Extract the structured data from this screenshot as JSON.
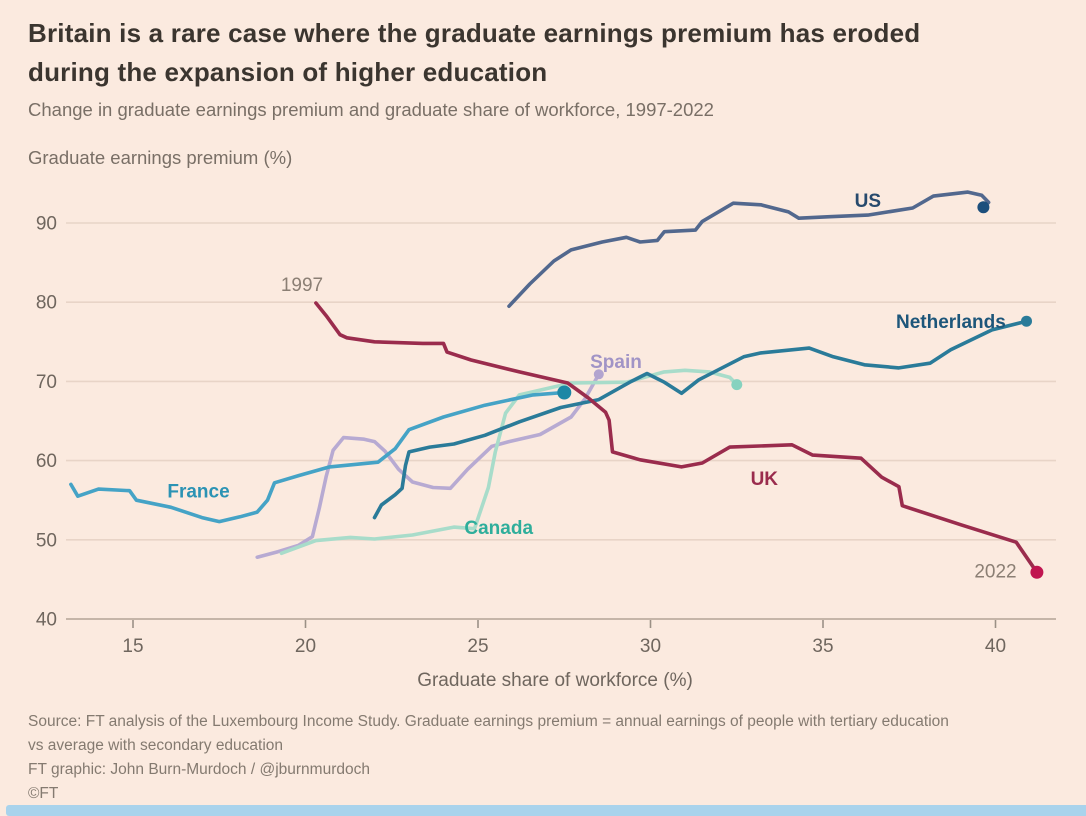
{
  "chart_data": {
    "type": "line",
    "title": "Britain is a rare case where the graduate earnings premium has eroded during the expansion of higher education",
    "subtitle": "Change in graduate earnings premium and graduate share of workforce, 1997-2022",
    "xlabel": "Graduate share of workforce (%)",
    "ylabel": "Graduate earnings premium (%)",
    "source": "Source: FT analysis of the Luxembourg Income Study. Graduate earnings premium = annual earnings of people with tertiary education vs average with secondary education",
    "credit": "FT graphic: John Burn-Murdoch / @jburnmurdoch",
    "copyright": "©FT",
    "xlim": [
      13.0,
      41.8
    ],
    "ylim": [
      40,
      95.5
    ],
    "x_ticks": [
      15,
      20,
      25,
      30,
      35,
      40
    ],
    "y_ticks": [
      90,
      80,
      70,
      60,
      50,
      40
    ],
    "grid": "horizontal",
    "period": "1997-2022",
    "series": [
      {
        "id": "spain",
        "name": "Spain",
        "color": "#b7aad2",
        "dot_color": "#b2a4cf",
        "dot_r": 5,
        "end_dot": true,
        "points": [
          [
            18.6,
            47.8
          ],
          [
            19.2,
            48.5
          ],
          [
            19.8,
            49.3
          ],
          [
            20.2,
            50.4
          ],
          [
            20.4,
            54.0
          ],
          [
            20.6,
            58.0
          ],
          [
            20.8,
            61.3
          ],
          [
            21.1,
            62.9
          ],
          [
            21.7,
            62.7
          ],
          [
            22.0,
            62.4
          ],
          [
            22.3,
            61.2
          ],
          [
            22.7,
            58.9
          ],
          [
            23.1,
            57.3
          ],
          [
            23.7,
            56.6
          ],
          [
            24.2,
            56.5
          ],
          [
            24.7,
            58.9
          ],
          [
            25.4,
            61.8
          ],
          [
            25.9,
            62.4
          ],
          [
            26.8,
            63.3
          ],
          [
            27.7,
            65.5
          ],
          [
            28.1,
            67.8
          ],
          [
            28.5,
            70.9
          ]
        ]
      },
      {
        "id": "canada",
        "name": "Canada",
        "color": "#a8dcca",
        "dot_color": "#86d2bf",
        "dot_r": 5.5,
        "end_dot": true,
        "points": [
          [
            19.3,
            48.3
          ],
          [
            20.3,
            49.9
          ],
          [
            21.3,
            50.3
          ],
          [
            22.0,
            50.1
          ],
          [
            23.1,
            50.6
          ],
          [
            24.3,
            51.6
          ],
          [
            24.9,
            51.4
          ],
          [
            25.3,
            56.6
          ],
          [
            25.5,
            61.1
          ],
          [
            25.8,
            66.0
          ],
          [
            26.2,
            68.3
          ],
          [
            26.8,
            68.9
          ],
          [
            27.7,
            69.8
          ],
          [
            29.3,
            69.9
          ],
          [
            30.4,
            71.2
          ],
          [
            31.0,
            71.4
          ],
          [
            31.7,
            71.2
          ],
          [
            32.3,
            70.5
          ],
          [
            32.5,
            69.6
          ]
        ]
      },
      {
        "id": "france",
        "name": "France",
        "color": "#45a3c6",
        "dot_color": "#1c87a5",
        "dot_r": 7,
        "end_dot": true,
        "points": [
          [
            13.2,
            57.0
          ],
          [
            13.4,
            55.5
          ],
          [
            14.0,
            56.4
          ],
          [
            14.9,
            56.2
          ],
          [
            15.1,
            55.0
          ],
          [
            16.1,
            54.1
          ],
          [
            17.0,
            52.8
          ],
          [
            17.5,
            52.3
          ],
          [
            18.1,
            52.9
          ],
          [
            18.6,
            53.5
          ],
          [
            18.9,
            55.0
          ],
          [
            19.1,
            57.2
          ],
          [
            19.8,
            58.1
          ],
          [
            20.7,
            59.2
          ],
          [
            22.1,
            59.8
          ],
          [
            22.6,
            61.5
          ],
          [
            23.0,
            63.9
          ],
          [
            24.0,
            65.5
          ],
          [
            25.2,
            67.0
          ],
          [
            26.6,
            68.3
          ],
          [
            27.5,
            68.6
          ]
        ]
      },
      {
        "id": "netherlands",
        "name": "Netherlands",
        "color": "#2a7b99",
        "dot_color": "#2a7b99",
        "dot_r": 5.5,
        "end_dot": true,
        "points": [
          [
            22.0,
            52.8
          ],
          [
            22.2,
            54.4
          ],
          [
            22.6,
            55.7
          ],
          [
            22.8,
            56.5
          ],
          [
            22.9,
            59.4
          ],
          [
            23.0,
            61.1
          ],
          [
            23.6,
            61.7
          ],
          [
            24.3,
            62.1
          ],
          [
            25.2,
            63.2
          ],
          [
            26.2,
            64.9
          ],
          [
            27.4,
            66.7
          ],
          [
            28.5,
            67.7
          ],
          [
            29.4,
            69.9
          ],
          [
            29.9,
            71.0
          ],
          [
            30.4,
            69.9
          ],
          [
            30.9,
            68.5
          ],
          [
            31.4,
            70.2
          ],
          [
            32.7,
            73.1
          ],
          [
            33.2,
            73.6
          ],
          [
            34.6,
            74.2
          ],
          [
            35.3,
            73.1
          ],
          [
            36.2,
            72.1
          ],
          [
            37.2,
            71.7
          ],
          [
            38.1,
            72.3
          ],
          [
            38.7,
            74.0
          ],
          [
            39.9,
            76.5
          ],
          [
            40.9,
            77.6
          ]
        ]
      },
      {
        "id": "us",
        "name": "US",
        "color": "#52688e",
        "dot_color": "#1d4f7c",
        "dot_r": 6,
        "end_dot": true,
        "points": [
          [
            25.9,
            79.5
          ],
          [
            26.5,
            82.3
          ],
          [
            27.2,
            85.2
          ],
          [
            27.7,
            86.6
          ],
          [
            28.6,
            87.6
          ],
          [
            29.3,
            88.2
          ],
          [
            29.7,
            87.6
          ],
          [
            30.2,
            87.8
          ],
          [
            30.4,
            88.9
          ],
          [
            31.3,
            89.1
          ],
          [
            31.5,
            90.2
          ],
          [
            32.4,
            92.5
          ],
          [
            33.2,
            92.3
          ],
          [
            34.0,
            91.4
          ],
          [
            34.3,
            90.6
          ],
          [
            35.2,
            90.8
          ],
          [
            36.3,
            91.0
          ],
          [
            37.6,
            91.9
          ],
          [
            38.2,
            93.4
          ],
          [
            39.2,
            93.9
          ],
          [
            39.6,
            93.5
          ],
          [
            39.8,
            92.6
          ],
          [
            39.65,
            92.0
          ]
        ]
      },
      {
        "id": "uk",
        "name": "UK",
        "color": "#9a2c4d",
        "dot_color": "#c01550",
        "dot_r": 6.5,
        "end_dot": true,
        "points": [
          [
            20.3,
            79.9
          ],
          [
            20.6,
            78.3
          ],
          [
            21.0,
            75.9
          ],
          [
            21.2,
            75.5
          ],
          [
            22.0,
            75.0
          ],
          [
            23.4,
            74.8
          ],
          [
            24.0,
            74.8
          ],
          [
            24.1,
            73.7
          ],
          [
            24.8,
            72.7
          ],
          [
            26.2,
            71.2
          ],
          [
            27.6,
            69.8
          ],
          [
            28.2,
            67.9
          ],
          [
            28.7,
            66.1
          ],
          [
            28.8,
            65.1
          ],
          [
            28.9,
            61.1
          ],
          [
            29.7,
            60.1
          ],
          [
            30.9,
            59.2
          ],
          [
            31.5,
            59.7
          ],
          [
            32.3,
            61.7
          ],
          [
            34.1,
            62.0
          ],
          [
            34.7,
            60.7
          ],
          [
            36.1,
            60.3
          ],
          [
            36.7,
            57.9
          ],
          [
            37.2,
            56.7
          ],
          [
            37.3,
            54.3
          ],
          [
            39.0,
            51.9
          ],
          [
            40.6,
            49.7
          ],
          [
            41.2,
            45.9
          ]
        ]
      }
    ],
    "annotations": [
      {
        "name": "country-label-us",
        "text": "US",
        "x": 36.3,
        "y": 92.9,
        "color": "#274a6d",
        "anchor": "middle",
        "bold": true
      },
      {
        "name": "country-label-netherlands",
        "text": "Netherlands",
        "x": 40.3,
        "y": 77.6,
        "color": "#1d567a",
        "anchor": "end",
        "bold": true
      },
      {
        "name": "country-label-spain",
        "text": "Spain",
        "x": 29.0,
        "y": 72.6,
        "color": "#a194c6",
        "anchor": "middle",
        "bold": true
      },
      {
        "name": "country-label-france",
        "text": "France",
        "x": 16.9,
        "y": 56.2,
        "color": "#2b93b4",
        "anchor": "middle",
        "bold": true
      },
      {
        "name": "country-label-canada",
        "text": "Canada",
        "x": 25.6,
        "y": 51.6,
        "color": "#2fae9b",
        "anchor": "middle",
        "bold": true
      },
      {
        "name": "country-label-uk",
        "text": "UK",
        "x": 33.3,
        "y": 57.8,
        "color": "#9a2c4d",
        "anchor": "middle",
        "bold": true
      },
      {
        "name": "year-label-start",
        "text": "1997",
        "x": 19.9,
        "y": 82.3,
        "color": "#8b7f74",
        "anchor": "middle",
        "bold": false
      },
      {
        "name": "year-label-end",
        "text": "2022",
        "x": 40.0,
        "y": 46.1,
        "color": "#8b7f74",
        "anchor": "middle",
        "bold": false
      }
    ]
  },
  "style": {
    "background": "#fbeadf",
    "gridline_color": "#e8d4c7",
    "baseline_color": "#b3a395",
    "tick_color": "#9b9086",
    "tick_label_color": "#6f665e",
    "bottom_strip_color": "#a9d3ec"
  }
}
